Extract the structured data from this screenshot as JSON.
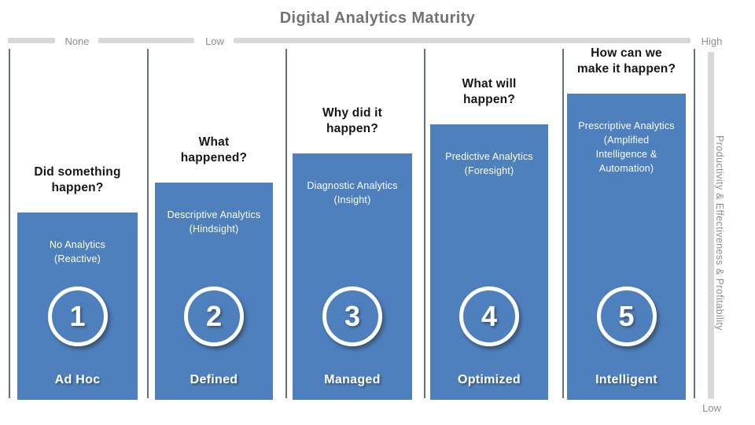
{
  "title": "Digital Analytics Maturity",
  "top_axis": {
    "none_label": "None",
    "low_label": "Low",
    "high_label": "High"
  },
  "right_axis": {
    "top_label": "High",
    "bottom_label": "Low",
    "label": "Productivity & Effectiveness & Profitability"
  },
  "colors": {
    "bar_blue": "#4e80bd",
    "axis_gray": "#d9d9d9",
    "label_gray": "#8e8e8e",
    "separator_line": "#3e5c6e",
    "title_gray": "#737373"
  },
  "stages": [
    {
      "number": "1",
      "question": "Did something\nhappen?",
      "description": "No Analytics\n(Reactive)",
      "name": "Ad Hoc"
    },
    {
      "number": "2",
      "question": "What\nhappened?",
      "description": "Descriptive Analytics\n(Hindsight)",
      "name": "Defined"
    },
    {
      "number": "3",
      "question": "Why did it\nhappen?",
      "description": "Diagnostic Analytics\n(Insight)",
      "name": "Managed"
    },
    {
      "number": "4",
      "question": "What will\nhappen?",
      "description": "Predictive Analytics\n(Foresight)",
      "name": "Optimized"
    },
    {
      "number": "5",
      "question": "How can we\nmake it happen?",
      "description": "Prescriptive Analytics\n(Amplified\nIntelligence &\nAutomation)",
      "name": "Intelligent"
    }
  ]
}
